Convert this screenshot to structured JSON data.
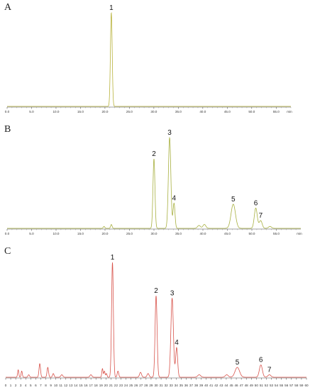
{
  "chart_data": [
    {
      "type": "line",
      "panel": "A",
      "color": "#b8b23a",
      "xlabel": "min",
      "xlim": [
        0,
        58
      ],
      "tick_labels": [
        "0.0",
        "5.0",
        "10.0",
        "15.0",
        "20.0",
        "25.0",
        "30.0",
        "35.0",
        "40.0",
        "45.0",
        "50.0",
        "55.0"
      ],
      "peaks": [
        {
          "label": "1",
          "time": 21.3,
          "height": 0.93,
          "width": 0.18
        }
      ]
    },
    {
      "type": "line",
      "panel": "B",
      "color": "#a8b040",
      "xlabel": "min",
      "xlim": [
        0,
        60
      ],
      "tick_labels": [
        "0.0",
        "5.0",
        "10.0",
        "15.0",
        "20.0",
        "25.0",
        "30.0",
        "35.0",
        "40.0",
        "45.0",
        "50.0",
        "55.0"
      ],
      "peaks": [
        {
          "label": "",
          "time": 19.8,
          "height": 0.02,
          "width": 0.15
        },
        {
          "label": "",
          "time": 21.3,
          "height": 0.04,
          "width": 0.15
        },
        {
          "label": "2",
          "time": 30.0,
          "height": 0.72,
          "width": 0.2
        },
        {
          "label": "3",
          "time": 33.2,
          "height": 0.94,
          "width": 0.25
        },
        {
          "label": "4",
          "time": 34.1,
          "height": 0.26,
          "width": 0.2
        },
        {
          "label": "",
          "time": 39.2,
          "height": 0.03,
          "width": 0.3
        },
        {
          "label": "",
          "time": 40.3,
          "height": 0.04,
          "width": 0.3
        },
        {
          "label": "5",
          "time": 46.2,
          "height": 0.25,
          "width": 0.45
        },
        {
          "label": "6",
          "time": 50.8,
          "height": 0.21,
          "width": 0.3
        },
        {
          "label": "7",
          "time": 51.8,
          "height": 0.08,
          "width": 0.3
        },
        {
          "label": "",
          "time": 53.7,
          "height": 0.02,
          "width": 0.3
        }
      ]
    },
    {
      "type": "line",
      "panel": "C",
      "color": "#d8534b",
      "xlim": [
        0,
        60
      ],
      "tick_labels": [
        "0",
        "1",
        "2",
        "3",
        "4",
        "5",
        "6",
        "7",
        "8",
        "9",
        "10",
        "11",
        "12",
        "13",
        "14",
        "15",
        "16",
        "17",
        "18",
        "19",
        "20",
        "21",
        "22",
        "23",
        "24",
        "25",
        "26",
        "27",
        "28",
        "29",
        "30",
        "31",
        "32",
        "33",
        "34",
        "35",
        "36",
        "37",
        "38",
        "39",
        "40",
        "41",
        "42",
        "43",
        "44",
        "45",
        "46",
        "47",
        "48",
        "49",
        "50",
        "51",
        "52",
        "53",
        "54",
        "55",
        "56",
        "57",
        "58",
        "59",
        "60"
      ],
      "peaks": [
        {
          "label": "",
          "time": 2.5,
          "height": 0.06,
          "width": 0.12
        },
        {
          "label": "",
          "time": 3.2,
          "height": 0.05,
          "width": 0.12
        },
        {
          "label": "",
          "time": 4.6,
          "height": 0.02,
          "width": 0.15
        },
        {
          "label": "",
          "time": 6.8,
          "height": 0.11,
          "width": 0.15
        },
        {
          "label": "",
          "time": 8.4,
          "height": 0.08,
          "width": 0.15
        },
        {
          "label": "",
          "time": 9.5,
          "height": 0.03,
          "width": 0.15
        },
        {
          "label": "",
          "time": 11.2,
          "height": 0.02,
          "width": 0.2
        },
        {
          "label": "",
          "time": 17.0,
          "height": 0.02,
          "width": 0.2
        },
        {
          "label": "",
          "time": 19.3,
          "height": 0.07,
          "width": 0.12
        },
        {
          "label": "",
          "time": 19.7,
          "height": 0.05,
          "width": 0.12
        },
        {
          "label": "",
          "time": 20.1,
          "height": 0.03,
          "width": 0.12
        },
        {
          "label": "1",
          "time": 21.3,
          "height": 0.93,
          "width": 0.18
        },
        {
          "label": "",
          "time": 22.4,
          "height": 0.05,
          "width": 0.15
        },
        {
          "label": "",
          "time": 26.9,
          "height": 0.04,
          "width": 0.2
        },
        {
          "label": "",
          "time": 28.4,
          "height": 0.03,
          "width": 0.2
        },
        {
          "label": "2",
          "time": 30.0,
          "height": 0.66,
          "width": 0.2
        },
        {
          "label": "3",
          "time": 33.2,
          "height": 0.64,
          "width": 0.25
        },
        {
          "label": "4",
          "time": 34.1,
          "height": 0.24,
          "width": 0.2
        },
        {
          "label": "",
          "time": 38.6,
          "height": 0.02,
          "width": 0.3
        },
        {
          "label": "",
          "time": 44.1,
          "height": 0.02,
          "width": 0.3
        },
        {
          "label": "5",
          "time": 46.2,
          "height": 0.08,
          "width": 0.45
        },
        {
          "label": "6",
          "time": 50.9,
          "height": 0.1,
          "width": 0.3
        },
        {
          "label": "7",
          "time": 52.6,
          "height": 0.02,
          "width": 0.3
        }
      ]
    }
  ]
}
